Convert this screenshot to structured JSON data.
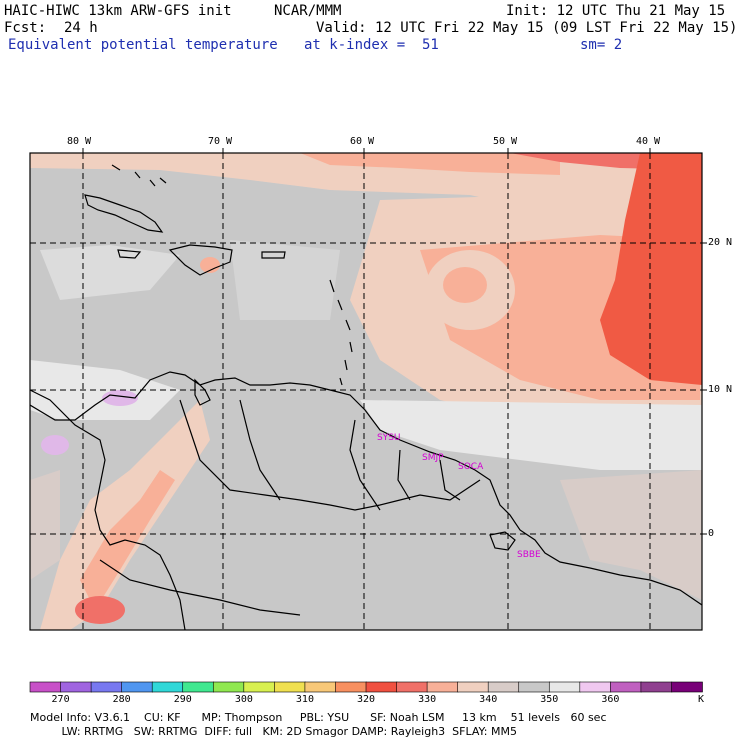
{
  "header": {
    "model": "HAIC-HIWC 13km ARW-GFS init",
    "org": "NCAR/MMM",
    "init": "Init: 12 UTC Thu 21 May 15",
    "fcst_label": "Fcst:",
    "fcst_value": "24 h",
    "valid": "Valid: 12 UTC Fri 22 May 15 (09 LST Fri 22 May 15)",
    "field": "Equivalent potential temperature",
    "k_index": "at k-index =  51",
    "smoothing": "sm= 2"
  },
  "map": {
    "lon_labels": [
      "80 W",
      "70 W",
      "60 W",
      "50 W",
      "40 W"
    ],
    "lat_labels": [
      "20 N",
      "10 N",
      "0"
    ],
    "stations": [
      "SYSU",
      "SMJP",
      "SOCA",
      "SBBE"
    ]
  },
  "colorbar": {
    "unit": "K",
    "tick_labels": [
      "270",
      "280",
      "290",
      "300",
      "310",
      "320",
      "330",
      "340",
      "350",
      "360"
    ],
    "colors": [
      "#c850c8",
      "#a064e0",
      "#7878f0",
      "#5096f0",
      "#30d8d8",
      "#40e890",
      "#90e850",
      "#d8f050",
      "#f0e050",
      "#f8c878",
      "#f89060",
      "#f05040",
      "#f07068",
      "#f8b098",
      "#f0d0c0",
      "#d8ccc8",
      "#c8c8c8",
      "#e8e8e8",
      "#f0c8f0",
      "#c060c0",
      "#904090",
      "#780078"
    ]
  },
  "footer": {
    "line1": "Model Info: V3.6.1    CU: KF      MP: Thompson     PBL: YSU      SF: Noah LSM     13 km    51 levels   60 sec",
    "line2": "         LW: RRTMG   SW: RRTMG  DIFF: full   KM: 2D Smagor DAMP: Rayleigh3  SFLAY: MM5"
  }
}
